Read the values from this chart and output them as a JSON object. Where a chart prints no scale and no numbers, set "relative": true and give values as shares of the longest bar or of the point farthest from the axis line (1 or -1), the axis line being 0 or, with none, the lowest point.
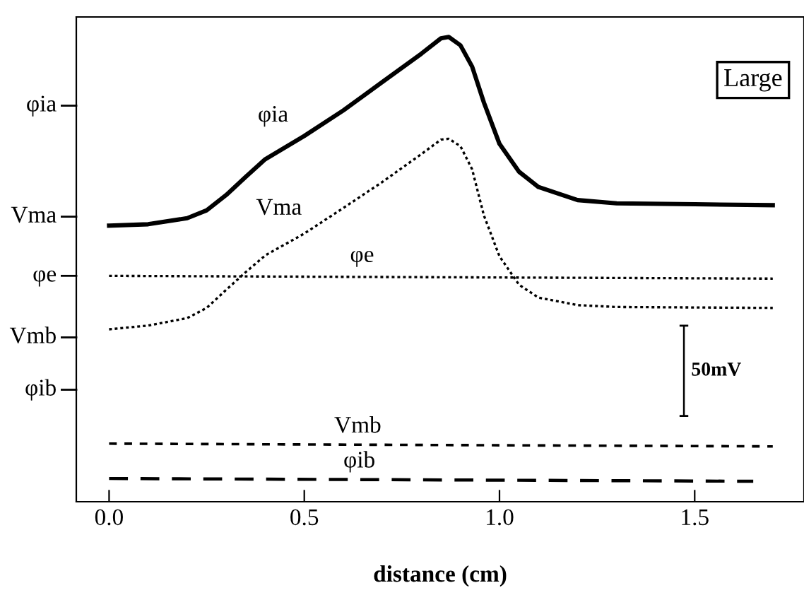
{
  "chart_data": {
    "type": "line",
    "relative": true,
    "xlabel": "distance (cm)",
    "xlim": [
      -0.084,
      1.78
    ],
    "xticks": [
      {
        "value": 0,
        "label": "0.0"
      },
      {
        "value": 0.5,
        "label": "0.5"
      },
      {
        "value": 1,
        "label": "1.0"
      },
      {
        "value": 1.5,
        "label": "1.5"
      }
    ],
    "grid": false,
    "legend": false,
    "marker": "none",
    "series": [
      {
        "name": "φia",
        "color": "#000000",
        "line_style": "solid",
        "x": [
          0,
          0.1,
          0.2,
          0.25,
          0.3,
          0.35,
          0.4,
          0.5,
          0.6,
          0.7,
          0.8,
          0.85,
          0.87,
          0.9,
          0.93,
          0.96,
          1.0,
          1.05,
          1.1,
          1.2,
          1.3,
          1.5,
          1.7
        ],
        "values": [
          0.594,
          0.597,
          0.61,
          0.627,
          0.66,
          0.699,
          0.737,
          0.787,
          0.842,
          0.903,
          0.964,
          0.997,
          1.0,
          0.982,
          0.936,
          0.859,
          0.77,
          0.71,
          0.677,
          0.649,
          0.642,
          0.64,
          0.638
        ]
      },
      {
        "name": "Vma",
        "color": "#000000",
        "line_style": "dotted",
        "x": [
          0,
          0.1,
          0.2,
          0.25,
          0.3,
          0.35,
          0.4,
          0.5,
          0.6,
          0.7,
          0.8,
          0.85,
          0.87,
          0.9,
          0.93,
          0.96,
          1.0,
          1.05,
          1.1,
          1.2,
          1.3,
          1.5,
          1.7
        ],
        "values": [
          0.371,
          0.379,
          0.395,
          0.417,
          0.456,
          0.494,
          0.53,
          0.577,
          0.632,
          0.688,
          0.748,
          0.779,
          0.781,
          0.765,
          0.715,
          0.616,
          0.528,
          0.467,
          0.439,
          0.423,
          0.419,
          0.418,
          0.417
        ]
      },
      {
        "name": "φe",
        "color": "#000000",
        "line_style": "dotted",
        "x": [
          0,
          1.7
        ],
        "values": [
          0.486,
          0.48
        ]
      },
      {
        "name": "Vmb",
        "color": "#000000",
        "line_style": "dashed",
        "x": [
          0,
          1.7
        ],
        "values": [
          0.125,
          0.119
        ]
      },
      {
        "name": "φib",
        "color": "#000000",
        "line_style": "dashed",
        "x": [
          0,
          1.65
        ],
        "values": [
          0.05,
          0.044
        ]
      }
    ],
    "annotations": [
      "φia",
      "Vma",
      "φe",
      "Vmb",
      "φib",
      "Large",
      "50mV"
    ]
  }
}
